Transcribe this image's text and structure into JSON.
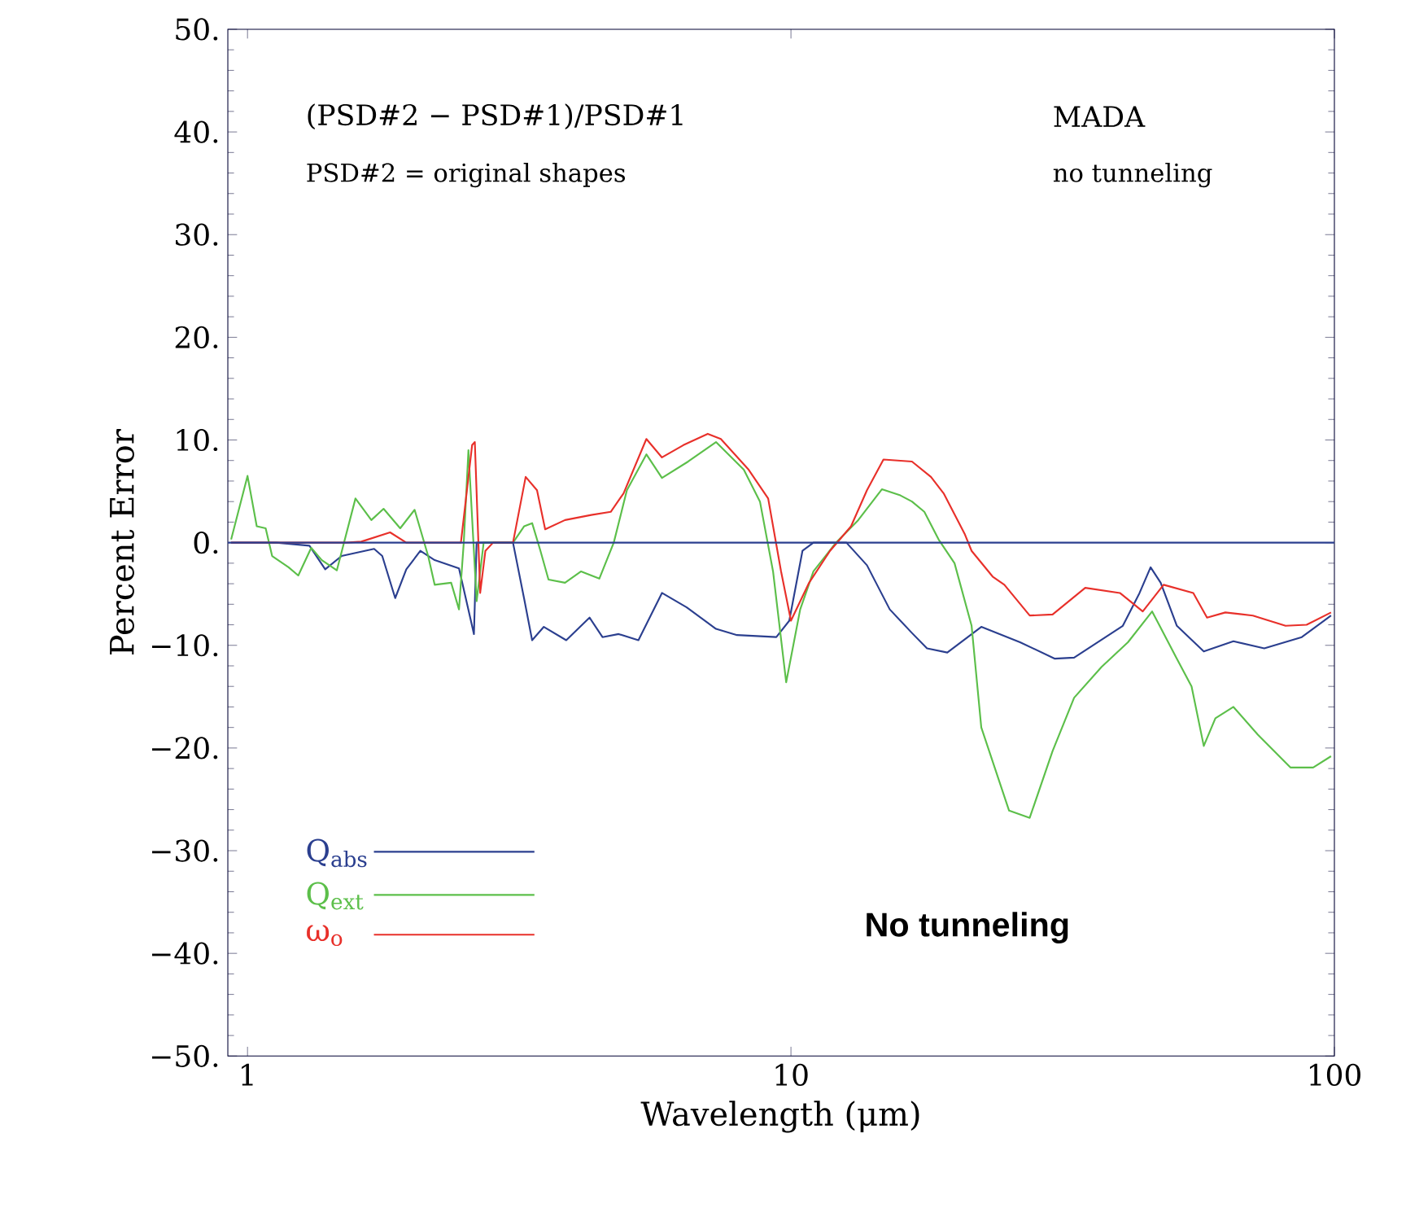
{
  "chart_data": {
    "type": "line",
    "xlabel": "Wavelength (μm)",
    "ylabel": "Percent Error",
    "log": "x",
    "xlim": [
      0.92,
      100
    ],
    "xticks": [
      1,
      10,
      100
    ],
    "ylim": [
      -50,
      50
    ],
    "yticks": [
      {
        "value": -50,
        "label": "−50."
      },
      {
        "value": -40,
        "label": "−40."
      },
      {
        "value": -30,
        "label": "−30."
      },
      {
        "value": -20,
        "label": "−20."
      },
      {
        "value": -10,
        "label": "−10."
      },
      {
        "value": 0,
        "label": "0."
      },
      {
        "value": 10,
        "label": "10."
      },
      {
        "value": 20,
        "label": "20."
      },
      {
        "value": 30,
        "label": "30."
      },
      {
        "value": 40,
        "label": "40."
      },
      {
        "value": 50,
        "label": "50."
      }
    ],
    "legend": "bottom left",
    "ref_lines": [
      {
        "axis": "y",
        "value": 0,
        "color": "#2b3f8f"
      }
    ],
    "annotations": [
      "(PSD#2 − PSD#1)/PSD#1",
      "PSD#2 = original shapes",
      "MADA",
      "no tunneling",
      "No tunneling"
    ],
    "series": [
      {
        "name": "Q$_{abs}$",
        "color": "#2b3f8f",
        "x": [
          0.933,
          1.13,
          1.3,
          1.39,
          1.49,
          1.71,
          1.77,
          1.87,
          1.96,
          2.08,
          2.21,
          2.45,
          2.61,
          2.64,
          3.08,
          3.23,
          3.34,
          3.51,
          3.86,
          4.26,
          4.5,
          4.82,
          5.24,
          5.79,
          6.43,
          7.28,
          7.96,
          9.4,
          9.93,
          10.5,
          11.0,
          12.65,
          13.8,
          15.2,
          16.7,
          17.8,
          19.4,
          22.4,
          26.4,
          30.6,
          33.2,
          40.8,
          43.8,
          45.9,
          47.9,
          51.3,
          57.5,
          65.2,
          74.3,
          87.1,
          98.6
        ],
        "values": [
          0,
          0,
          -0.3,
          -2.6,
          -1.3,
          -0.6,
          -1.3,
          -5.4,
          -2.6,
          -0.8,
          -1.7,
          -2.5,
          -8.9,
          0,
          0,
          -5.5,
          -9.5,
          -8.2,
          -9.5,
          -7.3,
          -9.2,
          -8.9,
          -9.5,
          -4.9,
          -6.3,
          -8.4,
          -9.0,
          -9.2,
          -7.6,
          -0.8,
          0,
          0,
          -2.2,
          -6.5,
          -8.8,
          -10.3,
          -10.7,
          -8.2,
          -9.7,
          -11.3,
          -11.2,
          -8.1,
          -4.9,
          -2.4,
          -3.9,
          -8.1,
          -10.6,
          -9.6,
          -10.3,
          -9.2,
          -7.1
        ]
      },
      {
        "name": "Q$_{ext}$",
        "color": "#5cbf4a",
        "x": [
          0.933,
          1.0,
          1.04,
          1.08,
          1.11,
          1.19,
          1.24,
          1.31,
          1.37,
          1.46,
          1.58,
          1.69,
          1.78,
          1.91,
          2.03,
          2.15,
          2.21,
          2.37,
          2.45,
          2.5,
          2.55,
          2.64,
          2.72,
          3.08,
          3.23,
          3.34,
          3.46,
          3.58,
          3.84,
          4.11,
          4.2,
          4.44,
          4.72,
          4.99,
          5.42,
          5.79,
          6.47,
          7.28,
          8.19,
          8.77,
          9.27,
          9.8,
          10.4,
          11.0,
          12.1,
          13.3,
          14.7,
          15.9,
          16.7,
          17.6,
          18.7,
          20.0,
          21.5,
          22.4,
          25.2,
          27.5,
          30.3,
          33.2,
          37.3,
          41.7,
          46.2,
          51.3,
          54.6,
          57.5,
          60.4,
          65.2,
          72.3,
          83.0,
          91.4,
          98.6
        ],
        "values": [
          0.3,
          6.5,
          1.6,
          1.4,
          -1.3,
          -2.4,
          -3.2,
          -0.5,
          -1.7,
          -2.7,
          4.3,
          2.2,
          3.3,
          1.4,
          3.2,
          -1.3,
          -4.1,
          -3.9,
          -6.5,
          0,
          9.0,
          -5.7,
          0,
          0,
          1.6,
          1.9,
          -0.8,
          -3.6,
          -3.9,
          -2.8,
          -3.0,
          -3.5,
          0,
          5.1,
          8.6,
          6.3,
          7.9,
          9.8,
          7.1,
          4.0,
          -2.8,
          -13.6,
          -6.5,
          -2.8,
          0,
          2.2,
          5.2,
          4.6,
          4.0,
          3.0,
          0.3,
          -2.0,
          -8.1,
          -18.0,
          -26.1,
          -26.8,
          -20.3,
          -15.1,
          -12.1,
          -9.7,
          -6.7,
          -11.3,
          -14.0,
          -19.8,
          -17.1,
          -16.0,
          -18.7,
          -21.9,
          -21.9,
          -20.8
        ]
      },
      {
        "name": "ω$_{o}$",
        "color": "#e8302a",
        "x": [
          0.933,
          1.52,
          1.62,
          1.83,
          1.96,
          2.47,
          2.59,
          2.62,
          2.68,
          2.74,
          2.83,
          3.08,
          3.25,
          3.41,
          3.53,
          3.84,
          4.29,
          4.66,
          4.92,
          5.42,
          5.79,
          6.34,
          7.03,
          7.43,
          8.36,
          9.08,
          9.59,
          10.0,
          10.8,
          11.8,
          12.9,
          13.8,
          14.8,
          16.7,
          18.1,
          19.1,
          20.9,
          21.5,
          23.5,
          24.7,
          27.5,
          30.3,
          34.8,
          40.3,
          44.4,
          48.5,
          55.0,
          58.3,
          63.0,
          70.8,
          81.3,
          88.9,
          98.6
        ],
        "values": [
          0,
          0,
          0.1,
          1.0,
          0,
          0,
          9.5,
          9.8,
          -4.9,
          -0.8,
          0,
          0,
          6.4,
          5.1,
          1.3,
          2.2,
          2.7,
          3.0,
          4.8,
          10.1,
          8.3,
          9.5,
          10.6,
          10.1,
          7.1,
          4.3,
          -2.8,
          -7.6,
          -3.9,
          -0.8,
          1.6,
          5.1,
          8.1,
          7.9,
          6.4,
          4.8,
          0.8,
          -0.8,
          -3.3,
          -4.1,
          -7.1,
          -7.0,
          -4.4,
          -4.9,
          -6.7,
          -4.1,
          -4.9,
          -7.3,
          -6.8,
          -7.1,
          -8.1,
          -8.0,
          -6.8
        ]
      }
    ]
  }
}
